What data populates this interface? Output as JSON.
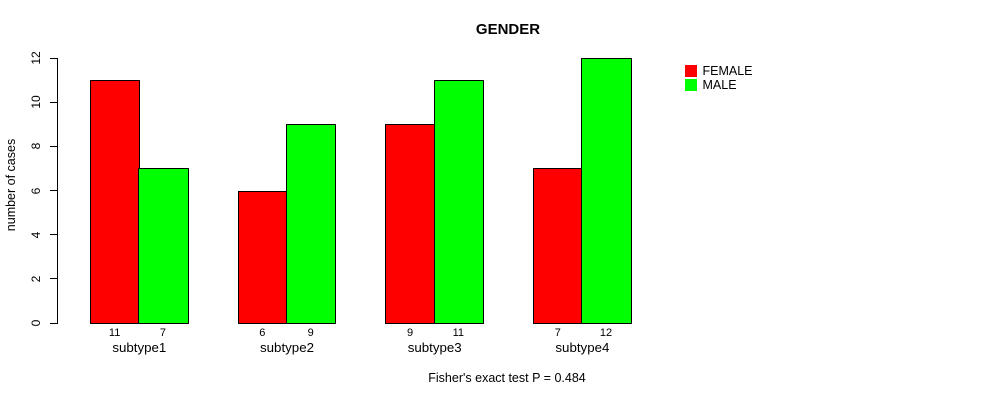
{
  "chart_data": {
    "type": "bar",
    "title": "GENDER",
    "xlabel": "",
    "ylabel": "number of cases",
    "categories": [
      "subtype1",
      "subtype2",
      "subtype3",
      "subtype4"
    ],
    "series": [
      {
        "name": "FEMALE",
        "color": "#ff0000",
        "values": [
          11,
          6,
          9,
          7
        ]
      },
      {
        "name": "MALE",
        "color": "#00ff00",
        "values": [
          7,
          9,
          11,
          12
        ]
      }
    ],
    "ylim": [
      0,
      12
    ],
    "yticks": [
      0,
      2,
      4,
      6,
      8,
      10,
      12
    ],
    "show_bar_values": true,
    "grid": false,
    "legend_position": "right-outside-top",
    "caption": "Fisher's exact test P = 0.484",
    "bar_border_color": "#000000",
    "background": "#ffffff"
  }
}
